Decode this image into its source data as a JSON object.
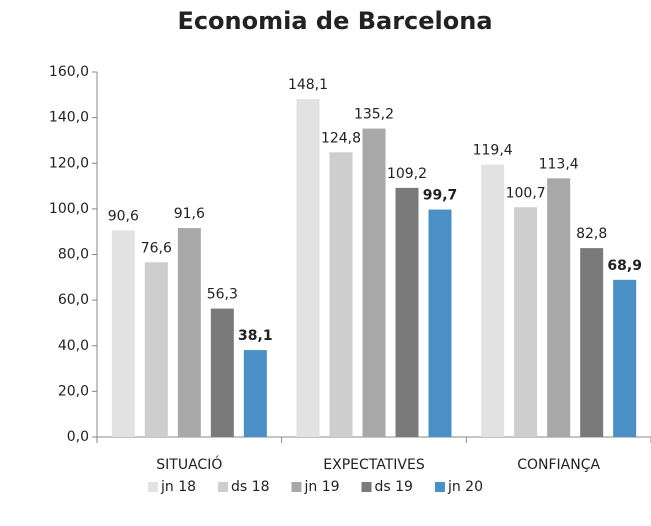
{
  "chart_data": {
    "type": "bar",
    "title": "Economia de Barcelona",
    "categories": [
      "SITUACIÓ",
      "EXPECTATIVES",
      "CONFIANÇA"
    ],
    "series": [
      {
        "name": "jn 18",
        "color": "#e2e2e2",
        "values": [
          90.6,
          148.1,
          119.4
        ],
        "value_labels": [
          "90,6",
          "148,1",
          "119,4"
        ]
      },
      {
        "name": "ds 18",
        "color": "#cecece",
        "values": [
          76.6,
          124.8,
          100.7
        ],
        "value_labels": [
          "76,6",
          "124,8",
          "100,7"
        ]
      },
      {
        "name": "jn 19",
        "color": "#a8a8a8",
        "values": [
          91.6,
          135.2,
          113.4
        ],
        "value_labels": [
          "91,6",
          "135,2",
          "113,4"
        ]
      },
      {
        "name": "ds 19",
        "color": "#7a7a7a",
        "values": [
          56.3,
          109.2,
          82.8
        ],
        "value_labels": [
          "56,3",
          "109,2",
          "82,8"
        ]
      },
      {
        "name": "jn 20",
        "color": "#4a90c6",
        "values": [
          38.1,
          99.7,
          68.9
        ],
        "value_labels": [
          "38,1",
          "99,7",
          "68,9"
        ],
        "value_label_weight": "bold"
      }
    ],
    "ylim": [
      0,
      160
    ],
    "yticks": [
      {
        "value": 0,
        "label": "0,0"
      },
      {
        "value": 20,
        "label": "20,0"
      },
      {
        "value": 40,
        "label": "40,0"
      },
      {
        "value": 60,
        "label": "60,0"
      },
      {
        "value": 80,
        "label": "80,0"
      },
      {
        "value": 100,
        "label": "100,0"
      },
      {
        "value": 120,
        "label": "120,0"
      },
      {
        "value": 140,
        "label": "140,0"
      },
      {
        "value": 160,
        "label": "160,0"
      }
    ],
    "grid": false,
    "legend": "bottom"
  }
}
